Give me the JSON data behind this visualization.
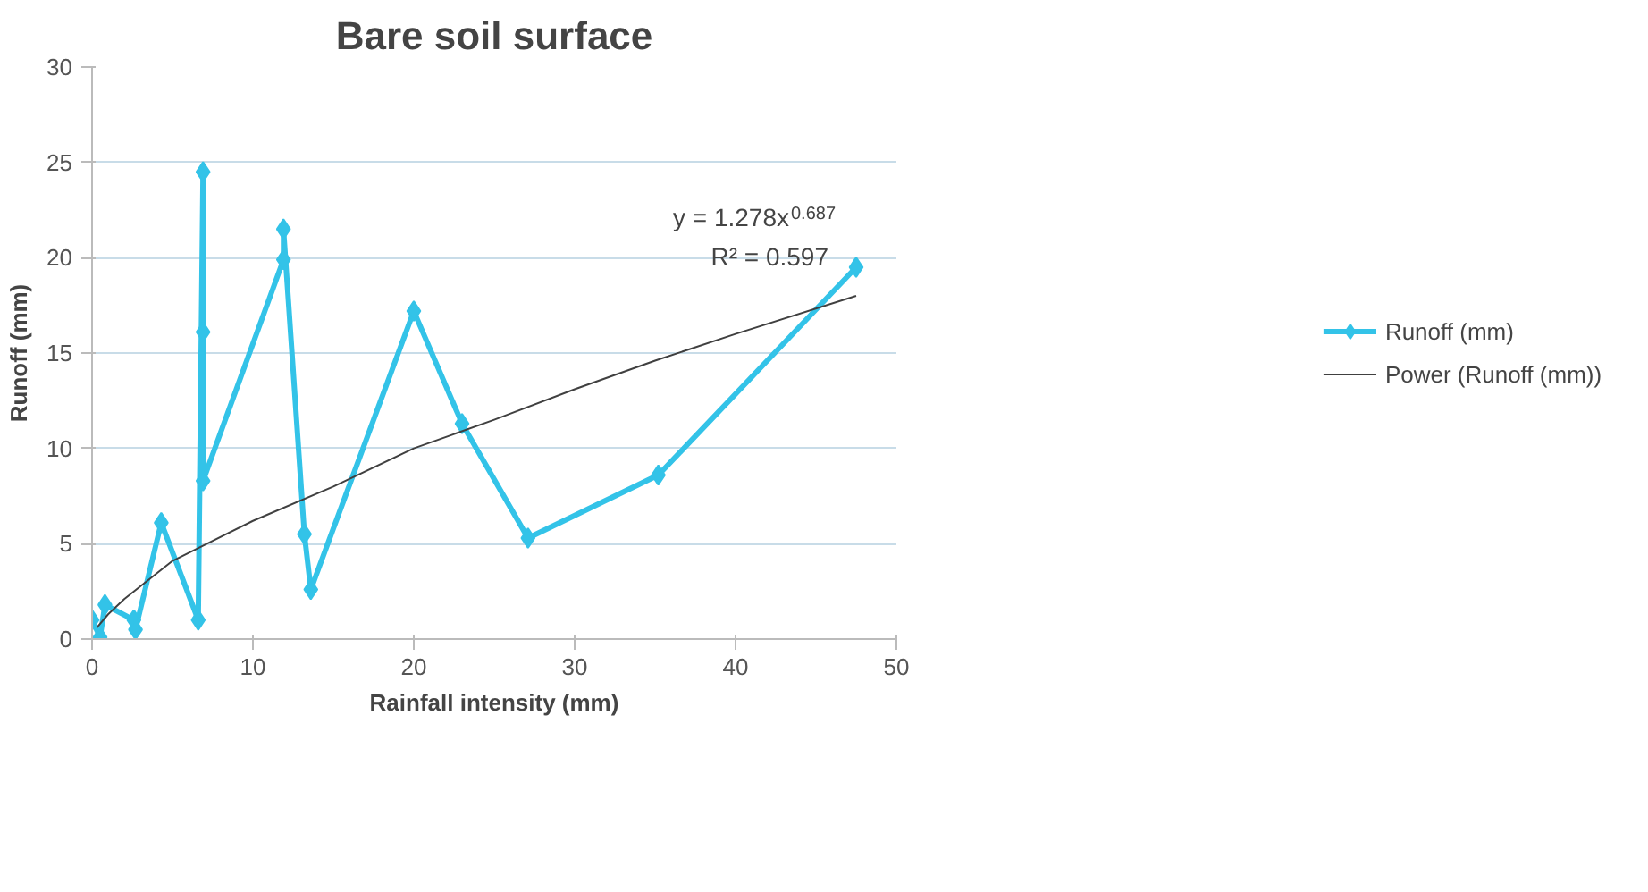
{
  "chart_data": {
    "type": "line",
    "title": "Bare soil surface",
    "xlabel": "Rainfall intensity (mm)",
    "ylabel": "Runoff (mm)",
    "xlim": [
      0,
      50
    ],
    "xticks": [
      0,
      10,
      20,
      30,
      40,
      50
    ],
    "ylim": [
      0,
      30
    ],
    "yticks": [
      0,
      5,
      10,
      15,
      20,
      25,
      30
    ],
    "grid": "y",
    "legend": "right",
    "marker": "diamond",
    "series": [
      {
        "name": "Runoff (mm)",
        "color": "#33c3e8",
        "x": [
          0,
          0.5,
          0.8,
          2.6,
          2.7,
          4.3,
          6.6,
          6.9,
          6.9,
          6.9,
          11.9,
          11.9,
          13.2,
          13.6,
          20.0,
          23.0,
          27.1,
          35.2,
          47.5
        ],
        "values": [
          1.0,
          0.1,
          1.8,
          1.0,
          0.5,
          6.1,
          1.0,
          24.5,
          16.1,
          8.3,
          19.9,
          21.5,
          5.5,
          2.6,
          17.2,
          11.3,
          5.3,
          8.6,
          19.5
        ]
      },
      {
        "name": "Power (Runoff (mm))",
        "color": "#404040",
        "type": "line",
        "marker": "none",
        "x": [
          0.3,
          1,
          2,
          5,
          10,
          15,
          20,
          25,
          30,
          35,
          40,
          47.5
        ],
        "values": [
          0.6,
          1.3,
          2.1,
          4.1,
          6.2,
          8.0,
          10.0,
          11.5,
          13.1,
          14.6,
          16.0,
          18.0
        ]
      }
    ],
    "annotations": [
      "y = 1.278x$^{0.687}$",
      "R² = 0.597"
    ]
  }
}
